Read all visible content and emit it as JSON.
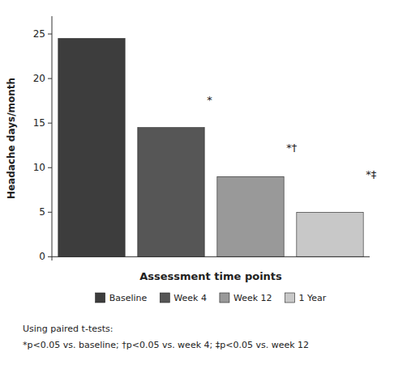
{
  "chart_data": {
    "type": "bar",
    "categories": [
      "Baseline",
      "Week 4",
      "Week 12",
      "1 Year"
    ],
    "values": [
      24.5,
      14.5,
      9.0,
      5.0
    ],
    "colors": [
      "#3d3d3d",
      "#565656",
      "#999999",
      "#c8c8c8"
    ],
    "ylabel": "Headache days/month",
    "xlabel": "Assessment time points",
    "ylim": [
      -0.42,
      27
    ],
    "yticks": [
      0,
      5,
      10,
      15,
      20,
      25
    ],
    "grid": false,
    "legend": "bottom",
    "annotations": [
      {
        "text": "*",
        "category": "Week 4",
        "y": 17.2
      },
      {
        "text": "*†",
        "category": "Week 12",
        "y": 11.8
      },
      {
        "text": "*‡",
        "category": "1 Year",
        "y": 8.8
      }
    ],
    "footnotes": [
      "Using paired t-tests:",
      "*p<0.05 vs. baseline; †p<0.05 vs. week 4; ‡p<0.05 vs. week 12"
    ]
  }
}
